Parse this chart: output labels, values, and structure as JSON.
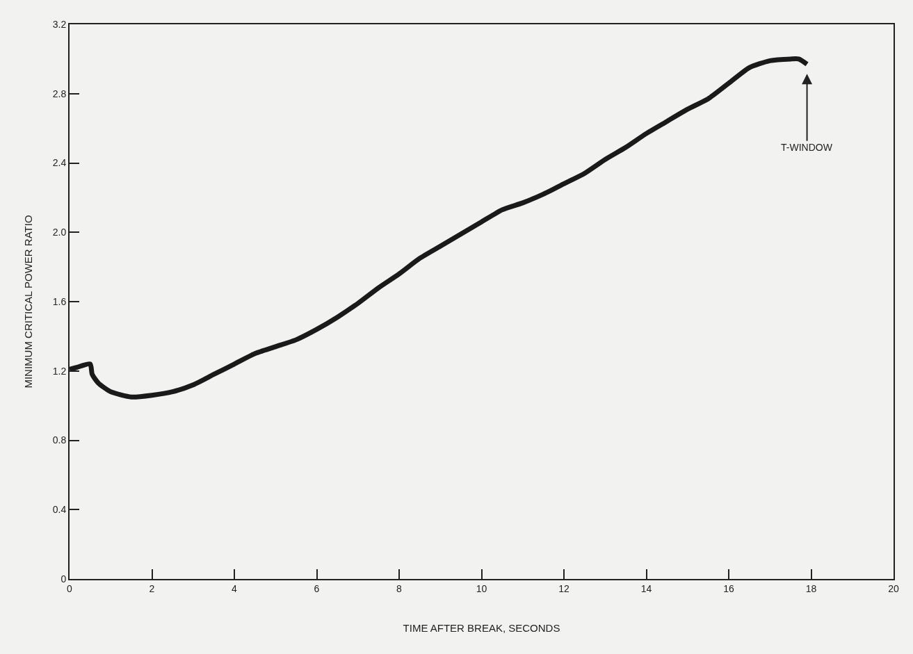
{
  "chart_data": {
    "type": "line",
    "xlabel": "TIME AFTER BREAK, SECONDS",
    "ylabel": "MINIMUM CRITICAL POWER RATIO",
    "x": [
      0,
      0.17,
      0.5,
      0.55,
      0.7,
      1.0,
      1.5,
      2.0,
      2.5,
      3.0,
      3.5,
      4.0,
      4.5,
      5.0,
      5.5,
      6.0,
      6.5,
      7.0,
      7.5,
      8.0,
      8.5,
      9.0,
      9.5,
      10.0,
      10.5,
      11.0,
      11.5,
      12.0,
      12.5,
      13.0,
      13.5,
      14.0,
      14.5,
      15.0,
      15.5,
      16.0,
      16.5,
      17.0,
      17.5,
      17.7,
      17.9
    ],
    "series": [
      {
        "color": "#1a1a1a",
        "values": [
          1.21,
          1.22,
          1.24,
          1.18,
          1.13,
          1.08,
          1.05,
          1.06,
          1.08,
          1.12,
          1.18,
          1.24,
          1.3,
          1.34,
          1.38,
          1.44,
          1.51,
          1.59,
          1.68,
          1.76,
          1.85,
          1.92,
          1.99,
          2.06,
          2.13,
          2.17,
          2.22,
          2.28,
          2.34,
          2.42,
          2.49,
          2.57,
          2.64,
          2.71,
          2.77,
          2.86,
          2.95,
          2.99,
          3.0,
          3.0,
          2.97
        ]
      }
    ],
    "xlim": [
      0,
      20
    ],
    "xticks": [
      0,
      2,
      4,
      6,
      8,
      10,
      12,
      14,
      16,
      18,
      20
    ],
    "ylim": [
      0,
      3.2
    ],
    "yticks": [
      0,
      0.4,
      0.8,
      1.2,
      1.6,
      "2.0",
      2.4,
      2.8,
      3.2
    ],
    "annotations": [
      {
        "text": "T-WINDOW",
        "x": 17.9,
        "y": 2.97
      }
    ],
    "grid": false,
    "marker": "none",
    "line_style": "solid"
  }
}
